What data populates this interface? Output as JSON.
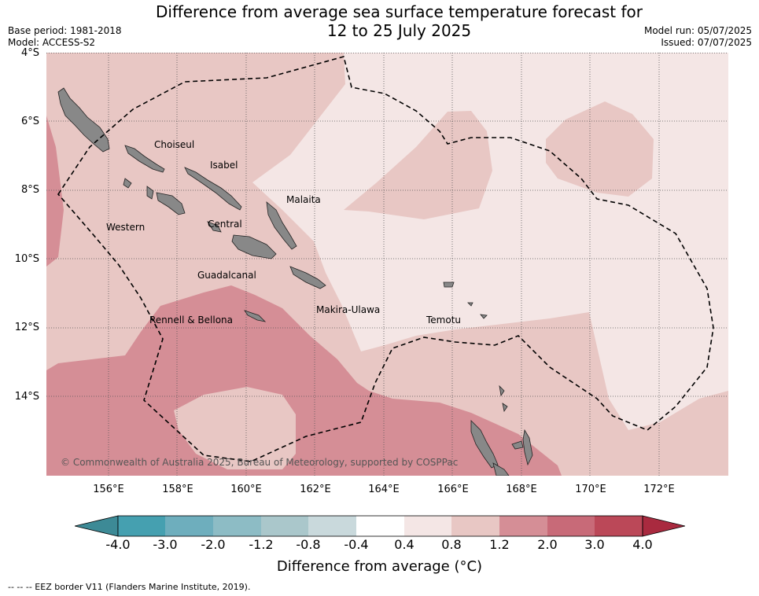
{
  "header": {
    "title_line1": "Difference from average sea surface temperature forecast for",
    "title_line2": "12 to 25 July 2025",
    "base_period": "Base period: 1981-2018",
    "model": "Model: ACCESS-S2",
    "model_run": "Model run: 05/07/2025",
    "issued": "Issued: 07/07/2025"
  },
  "axes": {
    "lat_labels": [
      "4°S",
      "6°S",
      "8°S",
      "10°S",
      "12°S",
      "14°S"
    ],
    "lon_labels": [
      "156°E",
      "158°E",
      "160°E",
      "162°E",
      "164°E",
      "166°E",
      "168°E",
      "170°E",
      "172°E"
    ]
  },
  "map": {
    "region_labels": [
      "Choiseul",
      "Isabel",
      "Malaita",
      "Western",
      "Central",
      "Guadalcanal",
      "Makira-Ulawa",
      "Rennell & Bellona",
      "Temotu"
    ],
    "copyright": "© Commonwealth of Australia 2025, Bureau of Meteorology, supported by COSPPac",
    "colors": {
      "land": "#888888",
      "anom_0_4_0_8": "#f4e6e5",
      "anom_0_8_1_2": "#e8c7c4",
      "anom_1_2_2_0": "#d58e96",
      "eez_line": "#000000"
    }
  },
  "colorbar": {
    "ticks": [
      "-4.0",
      "-3.0",
      "-2.0",
      "-1.2",
      "-0.8",
      "-0.4",
      "0.4",
      "0.8",
      "1.2",
      "2.0",
      "3.0",
      "4.0"
    ],
    "colors": [
      "#45a0b0",
      "#6eaebd",
      "#8dbcc5",
      "#aac7cb",
      "#c9d9dc",
      "#ffffff",
      "#f4e6e5",
      "#e8c7c4",
      "#d58e96",
      "#c86a78",
      "#bb4858"
    ],
    "under_color": "#3d8a96",
    "over_color": "#a92a3f",
    "title": "Difference from average ($^\\circ$C)",
    "title_display": "Difference from average (°C)"
  },
  "footer": {
    "legend": "-- -- -- EEZ border V11 (Flanders Marine Institute, 2019)."
  }
}
